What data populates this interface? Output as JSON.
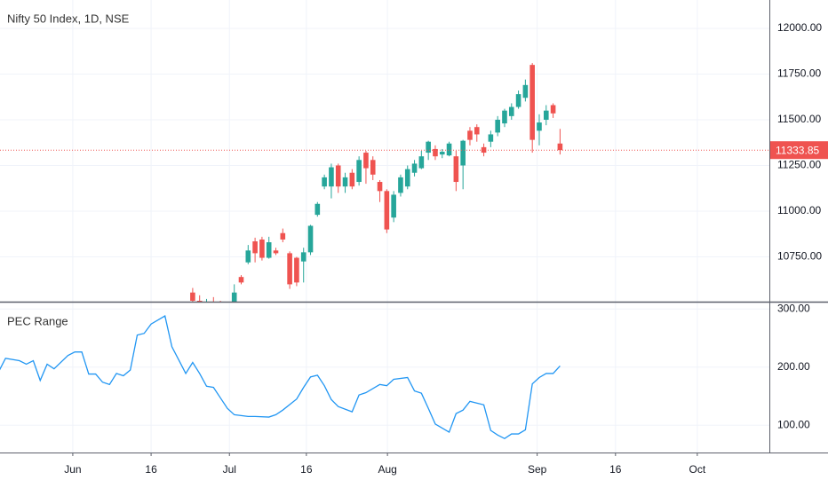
{
  "chart_data": [
    {
      "type": "candlestick",
      "title": "Nifty 50 Index, 1D, NSE",
      "up_color": "#26a69a",
      "down_color": "#ef5350",
      "x": [
        0,
        1,
        2,
        3,
        4,
        5,
        6,
        7,
        8,
        9,
        10,
        11,
        12,
        13,
        14,
        15,
        16,
        17,
        18,
        19,
        20,
        21,
        22,
        23,
        24,
        25,
        26,
        27,
        28,
        29,
        30,
        31,
        32,
        33,
        34,
        35,
        36,
        37,
        38,
        39,
        40,
        41,
        42,
        43,
        44,
        45,
        46,
        47,
        48,
        49,
        50,
        51,
        52,
        53
      ],
      "open": [
        10555,
        10510,
        10480,
        10500,
        10490,
        10460,
        10480,
        10640,
        10720,
        10835,
        10845,
        10745,
        10785,
        10880,
        10770,
        10745,
        10725,
        10775,
        10980,
        11135,
        11135,
        11250,
        11135,
        11210,
        11160,
        11320,
        11280,
        11160,
        11110,
        10965,
        11100,
        11135,
        11210,
        11235,
        11320,
        11340,
        11310,
        11305,
        11300,
        11250,
        11440,
        11460,
        11350,
        11380,
        11430,
        11480,
        11520,
        11570,
        11620,
        11800,
        11440,
        11500,
        11580,
        11370
      ],
      "high": [
        10580,
        10540,
        10520,
        10530,
        10510,
        10490,
        10600,
        10650,
        10815,
        10855,
        10860,
        10860,
        10800,
        10905,
        10780,
        10750,
        10800,
        10925,
        11050,
        11200,
        11260,
        11260,
        11210,
        11230,
        11300,
        11330,
        11300,
        11170,
        11120,
        11110,
        11200,
        11250,
        11280,
        11330,
        11385,
        11360,
        11340,
        11380,
        11330,
        11390,
        11460,
        11475,
        11370,
        11440,
        11520,
        11560,
        11590,
        11660,
        11720,
        11810,
        11530,
        11580,
        11590,
        11450
      ],
      "low": [
        10500,
        10460,
        10450,
        10470,
        10430,
        10420,
        10470,
        10600,
        10710,
        10720,
        10730,
        10740,
        10760,
        10830,
        10575,
        10590,
        10610,
        10760,
        10970,
        11120,
        11070,
        11100,
        11100,
        11120,
        11140,
        11150,
        11170,
        11050,
        10880,
        10940,
        11080,
        11120,
        11190,
        11230,
        11280,
        11280,
        11290,
        11300,
        11110,
        11120,
        11360,
        11380,
        11300,
        11350,
        11410,
        11460,
        11500,
        11560,
        11600,
        11320,
        11360,
        11470,
        11510,
        11310
      ],
      "close": [
        10510,
        10480,
        10500,
        10490,
        10460,
        10470,
        10555,
        10610,
        10785,
        10770,
        10745,
        10830,
        10770,
        10845,
        10600,
        10610,
        10775,
        10920,
        11040,
        11185,
        11240,
        11135,
        11185,
        11135,
        11280,
        11235,
        11200,
        11110,
        10900,
        11090,
        11185,
        11230,
        11260,
        11300,
        11380,
        11300,
        11325,
        11370,
        11160,
        11385,
        11390,
        11420,
        11320,
        11420,
        11500,
        11550,
        11570,
        11640,
        11690,
        11390,
        11485,
        11550,
        11535,
        11333.85
      ],
      "xlim": [
        -27.8,
        83.2
      ],
      "ylim": [
        10505,
        12155
      ],
      "yticks": [
        {
          "value": 10750,
          "label": "10750.00"
        },
        {
          "value": 11000,
          "label": "11000.00"
        },
        {
          "value": 11250,
          "label": "11250.00"
        },
        {
          "value": 11500,
          "label": "11500.00"
        },
        {
          "value": 11750,
          "label": "11750.00"
        },
        {
          "value": 12000,
          "label": "12000.00"
        }
      ],
      "grid": true
    },
    {
      "type": "line",
      "title": "PEC Range",
      "color": "#2196f3",
      "x": [
        -28,
        -27,
        -25,
        -24,
        -23,
        -22,
        -21,
        -20,
        -18,
        -17,
        -16,
        -15,
        -14,
        -13,
        -12,
        -11,
        -10,
        -9,
        -8,
        -7,
        -6,
        -4,
        -3,
        -2,
        -1,
        0,
        1,
        2,
        3,
        4,
        5,
        6,
        8,
        9,
        11,
        12,
        13,
        15,
        16,
        17,
        18,
        19,
        20,
        21,
        23,
        24,
        25,
        27,
        28,
        29,
        31,
        32,
        33,
        34,
        35,
        37,
        38,
        39,
        40,
        42,
        43,
        44,
        45,
        46,
        47,
        48,
        49,
        50,
        51,
        52,
        53
      ],
      "values": [
        192,
        215,
        211,
        205,
        211,
        177,
        205,
        197,
        220,
        226,
        226,
        188,
        188,
        174,
        170,
        189,
        185,
        195,
        255,
        258,
        274,
        288,
        235,
        212,
        189,
        208,
        189,
        167,
        165,
        147,
        129,
        118,
        115,
        115,
        114,
        118,
        126,
        145,
        165,
        183,
        186,
        168,
        144,
        132,
        123,
        152,
        156,
        170,
        168,
        179,
        182,
        159,
        155,
        129,
        102,
        88,
        120,
        126,
        141,
        135,
        91,
        83,
        77,
        85,
        85,
        92,
        171,
        182,
        189,
        189,
        202
      ],
      "xlim": [
        -27.8,
        83.2
      ],
      "ylim": [
        53,
        311
      ],
      "yticks": [
        {
          "value": 100,
          "label": "100.00"
        },
        {
          "value": 200,
          "label": "200.00"
        },
        {
          "value": 300,
          "label": "300.00"
        }
      ],
      "xticks": [
        {
          "value": -17.3,
          "label": "Jun"
        },
        {
          "value": -6,
          "label": "16"
        },
        {
          "value": 5.3,
          "label": "Jul"
        },
        {
          "value": 16.4,
          "label": "16"
        },
        {
          "value": 28.1,
          "label": "Aug"
        },
        {
          "value": 49.7,
          "label": "Sep"
        },
        {
          "value": 61,
          "label": "16"
        },
        {
          "value": 72.8,
          "label": "Oct"
        }
      ],
      "grid": true
    }
  ]
}
